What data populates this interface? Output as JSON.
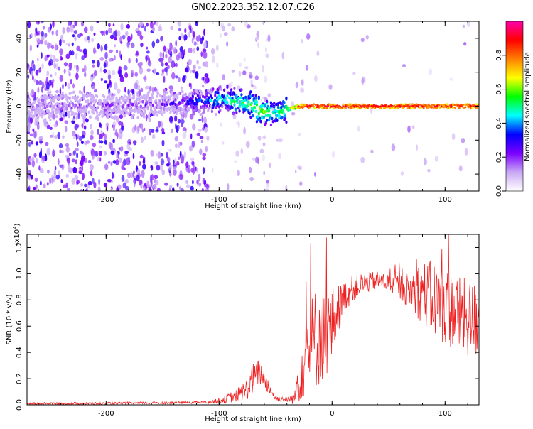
{
  "title": "GN02.2023.352.12.07.C26",
  "chart_data": [
    {
      "type": "heatmap",
      "xlabel": "Height of straight line (km)",
      "ylabel": "Frequency (Hz)",
      "xlim": [
        -270,
        130
      ],
      "ylim": [
        -50,
        50
      ],
      "x_ticks": [
        -200,
        -100,
        0,
        100
      ],
      "x_tick_labels": [
        "-200",
        "-100",
        "0",
        "100"
      ],
      "y_ticks": [
        -40,
        -20,
        0,
        20,
        40
      ],
      "y_tick_labels": [
        "-40",
        "-20",
        "0",
        "20",
        "40"
      ],
      "colorbar": {
        "label": "Normalized spectral amplitude",
        "range": [
          0,
          1
        ],
        "ticks": [
          0.0,
          0.2,
          0.4,
          0.6,
          0.8
        ],
        "tick_labels": [
          "0.0",
          "0.2",
          "0.4",
          "0.6",
          "0.8"
        ],
        "colormap": [
          "#ffffff",
          "#c9a8f5",
          "#7b00ff",
          "#0000ff",
          "#00ffff",
          "#00ff00",
          "#ffff00",
          "#ff8000",
          "#ff0000",
          "#ff00aa"
        ]
      },
      "ridge": {
        "x": [
          -270,
          -150,
          -120,
          -100,
          -80,
          -60,
          -50,
          -40,
          -30,
          -20,
          0,
          130
        ],
        "frequency": [
          0,
          1,
          3,
          4,
          2,
          -3,
          -5,
          -2,
          0,
          0,
          0,
          0
        ],
        "amplitude": [
          0.15,
          0.2,
          0.35,
          0.45,
          0.55,
          0.6,
          0.5,
          0.6,
          0.85,
          0.9,
          0.9,
          0.9
        ]
      },
      "grid": false
    },
    {
      "type": "line",
      "xlabel": "Height of straight line (km)",
      "ylabel": "SNR (10 * v/v)",
      "y_scale_label": "(x10",
      "y_scale_exponent": "4",
      "y_scale_suffix": ")",
      "xlim": [
        -270,
        130
      ],
      "ylim": [
        0,
        1.3
      ],
      "x_ticks": [
        -200,
        -100,
        0,
        100
      ],
      "x_tick_labels": [
        "-200",
        "-100",
        "0",
        "100"
      ],
      "y_ticks": [
        0.0,
        0.2,
        0.4,
        0.6,
        0.8,
        1.0,
        1.2
      ],
      "y_tick_labels": [
        "0.0",
        "0.2",
        "0.4",
        "0.6",
        "0.8",
        "1.0",
        "1.2"
      ],
      "color": "#ee2222",
      "envelope": {
        "x": [
          -270,
          -200,
          -150,
          -110,
          -100,
          -85,
          -75,
          -70,
          -65,
          -60,
          -55,
          -50,
          -40,
          -33,
          -30,
          -25,
          -20,
          -15,
          -10,
          -5,
          0,
          5,
          10,
          20,
          30,
          40,
          50,
          60,
          70,
          80,
          90,
          100,
          110,
          120,
          130
        ],
        "mean": [
          0.01,
          0.01,
          0.015,
          0.02,
          0.03,
          0.07,
          0.12,
          0.2,
          0.25,
          0.2,
          0.12,
          0.05,
          0.04,
          0.05,
          0.2,
          0.35,
          0.45,
          0.5,
          0.55,
          0.55,
          0.6,
          0.72,
          0.82,
          0.9,
          0.93,
          0.95,
          0.93,
          0.9,
          0.88,
          0.86,
          0.8,
          0.75,
          0.7,
          0.65,
          0.65
        ],
        "amplitude": [
          0.01,
          0.01,
          0.01,
          0.01,
          0.02,
          0.05,
          0.08,
          0.12,
          0.1,
          0.08,
          0.05,
          0.02,
          0.02,
          0.05,
          0.2,
          0.3,
          0.35,
          0.4,
          0.4,
          0.35,
          0.3,
          0.2,
          0.12,
          0.1,
          0.08,
          0.07,
          0.07,
          0.1,
          0.15,
          0.25,
          0.3,
          0.3,
          0.3,
          0.3,
          0.3
        ]
      },
      "grid": false
    }
  ]
}
